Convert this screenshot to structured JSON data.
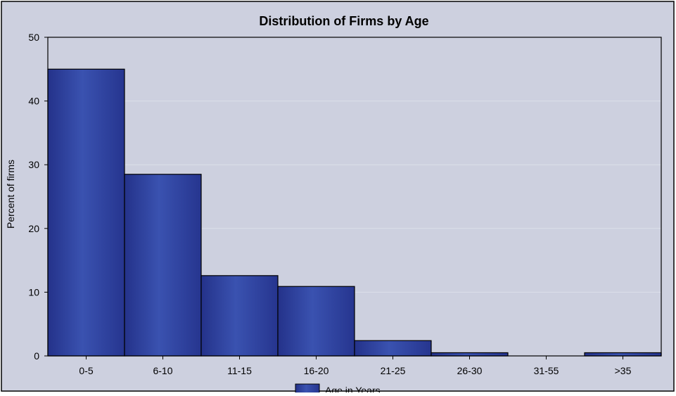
{
  "chart_data": {
    "type": "bar",
    "title": "Distribution of Firms by Age",
    "xlabel": "",
    "ylabel": "Percent of firms",
    "categories": [
      "0-5",
      "6-10",
      "11-15",
      "16-20",
      "21-25",
      "26-30",
      "31-55",
      ">35"
    ],
    "series": [
      {
        "name": "Age in Years",
        "values": [
          45,
          28.5,
          12.6,
          10.9,
          2.4,
          0.5,
          0,
          0.5
        ]
      }
    ],
    "ylim": [
      0,
      50
    ],
    "yticks": [
      0,
      10,
      20,
      30,
      40,
      50
    ],
    "grid": true,
    "legend_position": "bottom"
  },
  "colors": {
    "plot_background": "#cdd0df",
    "bar_fill": "#2e3f9b",
    "bar_highlight": "#3d55b4",
    "bar_stroke": "#000000",
    "gridline": "#dcdfe9",
    "frame": "#000000"
  }
}
